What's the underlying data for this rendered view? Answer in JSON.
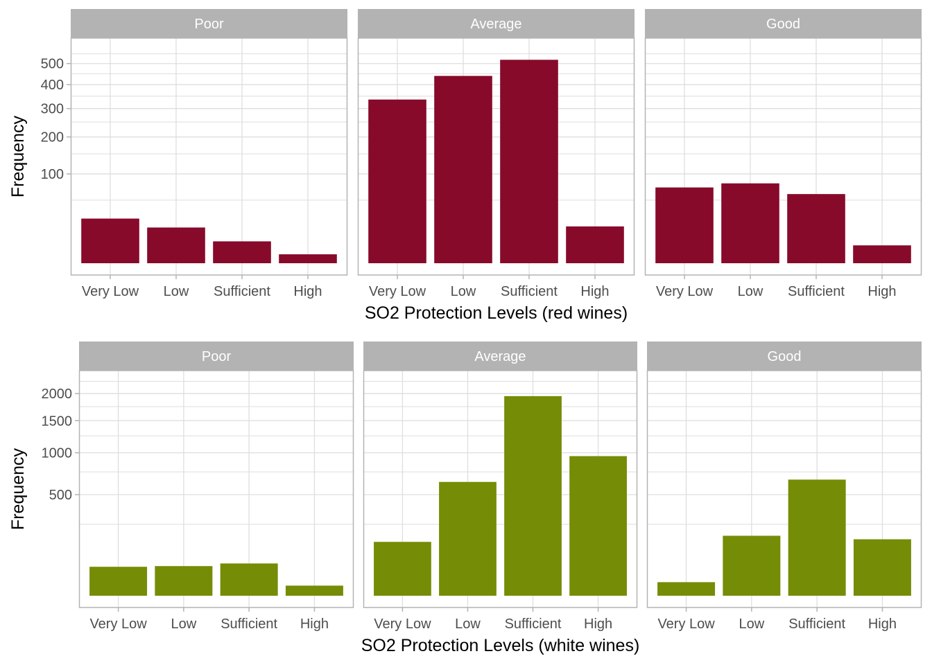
{
  "chart_data": [
    {
      "type": "bar",
      "facets": [
        "Poor",
        "Average",
        "Good"
      ],
      "categories": [
        "Very Low",
        "Low",
        "Sufficient",
        "High"
      ],
      "xlabel": "SO2 Protection Levels (red wines)",
      "ylabel": "Frequency",
      "y_scale": "sqrt",
      "y_ticks": [
        100,
        200,
        300,
        400,
        500
      ],
      "ylim": [
        0,
        620
      ],
      "bar_color": "#870A2A",
      "values": {
        "Poor": [
          25,
          16,
          6,
          1
        ],
        "Average": [
          336,
          440,
          519,
          17
        ],
        "Good": [
          72,
          80,
          60,
          4
        ]
      }
    },
    {
      "type": "bar",
      "facets": [
        "Poor",
        "Average",
        "Good"
      ],
      "categories": [
        "Very Low",
        "Low",
        "Sufficient",
        "High"
      ],
      "xlabel": "SO2 Protection Levels (white wines)",
      "ylabel": "Frequency",
      "y_scale": "sqrt",
      "y_ticks": [
        500,
        1000,
        1500,
        2000
      ],
      "ylim": [
        0,
        2420
      ],
      "bar_color": "#758C06",
      "values": {
        "Poor": [
          41,
          43,
          51,
          5
        ],
        "Average": [
          142,
          634,
          1950,
          954
        ],
        "Good": [
          9,
          176,
          660,
          156
        ]
      }
    }
  ],
  "colors": {
    "strip_background": "#B3B3B3",
    "strip_text": "#FFFFFF",
    "grid": "#DEDEDE",
    "panel_border": "#B3B3B3",
    "tick_text": "#4D4D4D"
  }
}
